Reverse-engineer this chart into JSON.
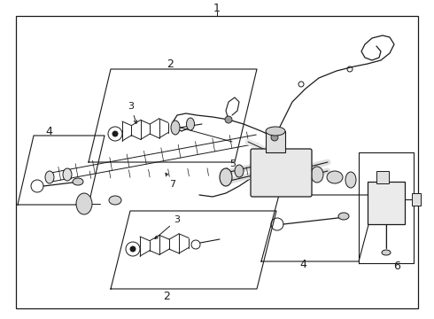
{
  "bg_color": "#ffffff",
  "line_color": "#1a1a1a",
  "label_color": "#1a1a1a",
  "fig_w": 4.9,
  "fig_h": 3.6,
  "dpi": 100
}
